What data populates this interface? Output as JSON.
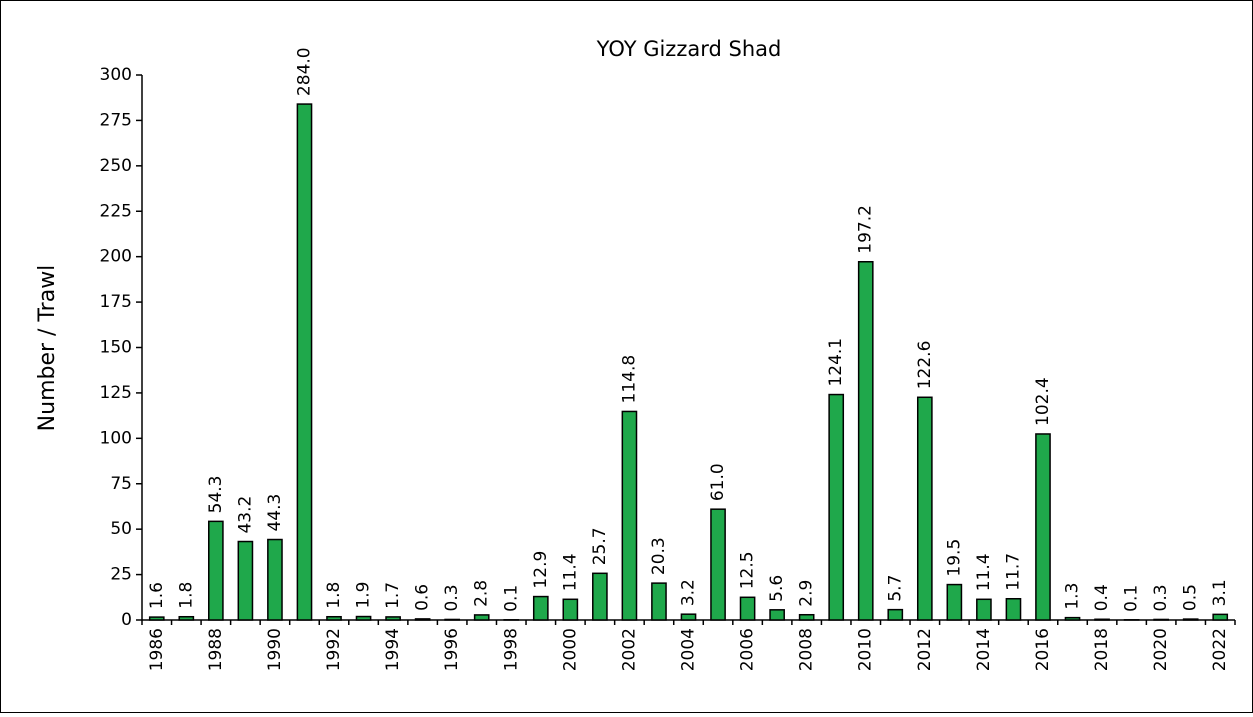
{
  "chart_data": {
    "type": "bar",
    "title": "YOY Gizzard Shad",
    "y_label": "Number / Trawl",
    "categories": [
      "1986",
      null,
      "1988",
      null,
      "1990",
      null,
      "1992",
      null,
      "1994",
      null,
      "1996",
      null,
      "1998",
      null,
      "2000",
      null,
      "2002",
      null,
      "2004",
      null,
      "2006",
      null,
      "2008",
      null,
      "2010",
      null,
      "2012",
      null,
      "2014",
      null,
      "2016",
      null,
      "2018",
      null,
      "2020",
      null,
      "2022"
    ],
    "values": [
      1.6,
      1.8,
      54.3,
      43.2,
      44.3,
      284.0,
      1.8,
      1.9,
      1.7,
      0.6,
      0.3,
      2.8,
      0.1,
      12.9,
      11.4,
      25.7,
      114.8,
      20.3,
      3.2,
      61.0,
      12.5,
      5.6,
      2.9,
      124.1,
      197.2,
      5.7,
      122.6,
      19.5,
      11.4,
      11.7,
      102.4,
      1.3,
      0.4,
      0.1,
      0.3,
      0.5,
      3.1
    ],
    "value_labels": [
      "1.6",
      "1.8",
      "54.3",
      "43.2",
      "44.3",
      "284.0",
      "1.8",
      "1.9",
      "1.7",
      "0.6",
      "0.3",
      "2.8",
      "0.1",
      "12.9",
      "11.4",
      "25.7",
      "114.8",
      "20.3",
      "3.2",
      "61.0",
      "12.5",
      "5.6",
      "2.9",
      "124.1",
      "197.2",
      "5.7",
      "122.6",
      "19.5",
      "11.4",
      "11.7",
      "102.4",
      "1.3",
      "0.4",
      "0.1",
      "0.3",
      "0.5",
      "3.1"
    ],
    "color": "#1fa84b",
    "ylim": [
      0,
      300
    ],
    "yticks": [
      0,
      25,
      50,
      75,
      100,
      125,
      150,
      175,
      200,
      225,
      250,
      275,
      300
    ],
    "grid": false
  }
}
